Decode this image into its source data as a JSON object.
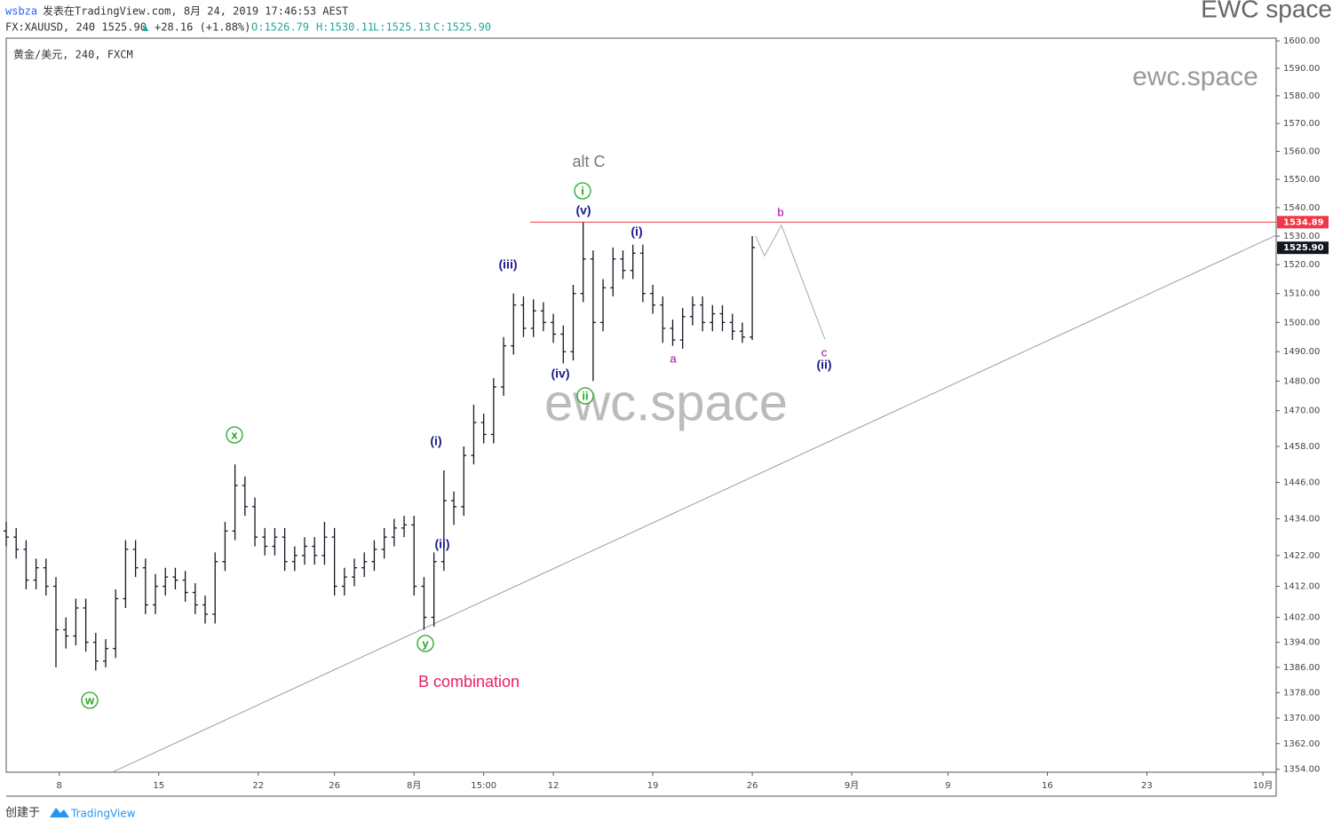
{
  "header": {
    "user": "wsbza",
    "published": "发表在TradingView.com, 8月 24, 2019 17:46:53 AEST",
    "brand": "EWC space",
    "symbol_line": "FX:XAUUSD, 240 1525.90",
    "change_arrow": "▲",
    "change": "+28.16 (+1.88%)",
    "open": "O:1526.79",
    "high": "H:1530.11",
    "low": "L:1525.13",
    "close": "C:1525.90",
    "legend": "黄金/美元, 240, FXCM"
  },
  "footer": {
    "created": "创建于",
    "logo": "TradingView"
  },
  "watermarks": [
    "ewc.space",
    "ewc.space"
  ],
  "chart_data": {
    "type": "ohlc",
    "bar_color": "#131722",
    "log_scale": true,
    "x": [
      0,
      3,
      6,
      9,
      12,
      15,
      18,
      21,
      24,
      27,
      30,
      33,
      36,
      39,
      42,
      45,
      48,
      51,
      54,
      57,
      60,
      63,
      66,
      69,
      72,
      75,
      78,
      81,
      84,
      87,
      90,
      93,
      96,
      99,
      102,
      105,
      108,
      111,
      114,
      117,
      120,
      123,
      126,
      129,
      132,
      135,
      138,
      141,
      144,
      147,
      150,
      153,
      156,
      159,
      162,
      165,
      168,
      171,
      174,
      177,
      180,
      183,
      186,
      189,
      192,
      195,
      198,
      201,
      204,
      207,
      210,
      213,
      216,
      219,
      222,
      225
    ],
    "open": [
      1430,
      1428,
      1424,
      1414,
      1418,
      1412,
      1398,
      1396,
      1405,
      1394,
      1388,
      1392,
      1408,
      1424,
      1418,
      1406,
      1412,
      1415,
      1414,
      1410,
      1406,
      1403,
      1420,
      1430,
      1445,
      1438,
      1428,
      1425,
      1428,
      1420,
      1422,
      1425,
      1422,
      1428,
      1412,
      1415,
      1418,
      1420,
      1424,
      1428,
      1431,
      1432,
      1412,
      1402,
      1420,
      1440,
      1438,
      1455,
      1466,
      1462,
      1478,
      1492,
      1506,
      1498,
      1504,
      1500,
      1496,
      1490,
      1510,
      1522,
      1500,
      1512,
      1522,
      1518,
      1524,
      1510,
      1506,
      1498,
      1494,
      1502,
      1506,
      1500,
      1503,
      1500,
      1497,
      1495
    ],
    "high": [
      1433,
      1431,
      1427,
      1421,
      1421,
      1415,
      1402,
      1408,
      1408,
      1397,
      1395,
      1411,
      1427,
      1427,
      1421,
      1416,
      1418,
      1418,
      1417,
      1413,
      1409,
      1423,
      1433,
      1452,
      1448,
      1441,
      1431,
      1431,
      1431,
      1425,
      1428,
      1428,
      1433,
      1431,
      1418,
      1421,
      1423,
      1427,
      1431,
      1434,
      1435,
      1435,
      1415,
      1423,
      1450,
      1443,
      1458,
      1472,
      1469,
      1481,
      1495,
      1510,
      1509,
      1508,
      1507,
      1503,
      1499,
      1513,
      1535,
      1525,
      1515,
      1526,
      1525,
      1527,
      1527,
      1513,
      1509,
      1501,
      1505,
      1509,
      1509,
      1506,
      1506,
      1503,
      1500,
      1530
    ],
    "low": [
      1425,
      1421,
      1411,
      1411,
      1409,
      1386,
      1392,
      1393,
      1391,
      1385,
      1386,
      1389,
      1405,
      1415,
      1403,
      1403,
      1409,
      1411,
      1407,
      1403,
      1400,
      1400,
      1417,
      1427,
      1435,
      1425,
      1422,
      1422,
      1417,
      1417,
      1419,
      1419,
      1419,
      1409,
      1409,
      1412,
      1415,
      1417,
      1421,
      1425,
      1428,
      1409,
      1398,
      1399,
      1417,
      1432,
      1435,
      1452,
      1459,
      1459,
      1475,
      1489,
      1495,
      1495,
      1497,
      1493,
      1486,
      1487,
      1507,
      1480,
      1497,
      1509,
      1515,
      1515,
      1507,
      1503,
      1493,
      1492,
      1491,
      1499,
      1497,
      1497,
      1497,
      1494,
      1493,
      1494
    ],
    "close": [
      1428,
      1424,
      1414,
      1418,
      1412,
      1398,
      1396,
      1405,
      1394,
      1388,
      1392,
      1408,
      1424,
      1418,
      1406,
      1412,
      1415,
      1414,
      1410,
      1406,
      1403,
      1420,
      1430,
      1445,
      1438,
      1428,
      1425,
      1428,
      1420,
      1422,
      1425,
      1422,
      1428,
      1412,
      1415,
      1418,
      1420,
      1424,
      1428,
      1431,
      1432,
      1412,
      1402,
      1420,
      1440,
      1438,
      1455,
      1466,
      1462,
      1478,
      1492,
      1506,
      1498,
      1504,
      1500,
      1496,
      1490,
      1510,
      1522,
      1500,
      1512,
      1522,
      1518,
      1524,
      1510,
      1506,
      1498,
      1494,
      1502,
      1506,
      1500,
      1503,
      1500,
      1497,
      1495,
      1526
    ],
    "xlim": [
      0,
      383
    ],
    "xticks": [
      {
        "value": 16,
        "label": "8"
      },
      {
        "value": 46,
        "label": "15"
      },
      {
        "value": 76,
        "label": "22"
      },
      {
        "value": 99,
        "label": "26"
      },
      {
        "value": 123,
        "label": "8月"
      },
      {
        "value": 144,
        "label": "15:00"
      },
      {
        "value": 165,
        "label": "12"
      },
      {
        "value": 195,
        "label": "19"
      },
      {
        "value": 225,
        "label": "26"
      },
      {
        "value": 255,
        "label": "9月"
      },
      {
        "value": 284,
        "label": "9"
      },
      {
        "value": 314,
        "label": "16"
      },
      {
        "value": 344,
        "label": "23"
      },
      {
        "value": 379,
        "label": "10月"
      }
    ],
    "ylim": [
      1353.1,
      1601
    ],
    "yticks": [
      {
        "value": 1600,
        "label": "1600.00"
      },
      {
        "value": 1590,
        "label": "1590.00"
      },
      {
        "value": 1580,
        "label": "1580.00"
      },
      {
        "value": 1570,
        "label": "1570.00"
      },
      {
        "value": 1560,
        "label": "1560.00"
      },
      {
        "value": 1550,
        "label": "1550.00"
      },
      {
        "value": 1540,
        "label": "1540.00"
      },
      {
        "value": 1530,
        "label": "1530.00"
      },
      {
        "value": 1520,
        "label": "1520.00"
      },
      {
        "value": 1510,
        "label": "1510.00"
      },
      {
        "value": 1500,
        "label": "1500.00"
      },
      {
        "value": 1490,
        "label": "1490.00"
      },
      {
        "value": 1480,
        "label": "1480.00"
      },
      {
        "value": 1470,
        "label": "1470.00"
      },
      {
        "value": 1458,
        "label": "1458.00"
      },
      {
        "value": 1446,
        "label": "1446.00"
      },
      {
        "value": 1434,
        "label": "1434.00"
      },
      {
        "value": 1422,
        "label": "1422.00"
      },
      {
        "value": 1412,
        "label": "1412.00"
      },
      {
        "value": 1402,
        "label": "1402.00"
      },
      {
        "value": 1394,
        "label": "1394.00"
      },
      {
        "value": 1386,
        "label": "1386.00"
      },
      {
        "value": 1378,
        "label": "1378.00"
      },
      {
        "value": 1370,
        "label": "1370.00"
      },
      {
        "value": 1362,
        "label": "1362.00"
      },
      {
        "value": 1354,
        "label": "1354.00"
      }
    ],
    "price_lines": [
      {
        "value": 1534.89,
        "label": "1534.89",
        "color": "#f23645",
        "line": true
      },
      {
        "value": 1525.9,
        "label": "1525.90",
        "color": "#131722",
        "line": false
      }
    ],
    "trendline": {
      "x": [
        32,
        383
      ],
      "y": [
        1353.1,
        1530.3
      ],
      "color": "#999999"
    },
    "projection": {
      "x": [
        226,
        228.7,
        233.8,
        246.9
      ],
      "y": [
        1530,
        1523.1,
        1533.8,
        1494.3
      ],
      "color": "#aaaaaa"
    },
    "annotations": [
      {
        "text": "alt C",
        "color": "#777777",
        "circled": false
      },
      {
        "text": "B combination",
        "color": "#e91e63",
        "circled": false
      },
      {
        "text": "i",
        "color": "#22a822",
        "circled": true
      },
      {
        "text": "ii",
        "color": "#22a822",
        "circled": true
      },
      {
        "text": "x",
        "color": "#22a822",
        "circled": true
      },
      {
        "text": "y",
        "color": "#22a822",
        "circled": true
      },
      {
        "text": "w",
        "color": "#22a822",
        "circled": true
      },
      {
        "text": "(v)",
        "color": "#1a1a8c",
        "circled": false
      },
      {
        "text": "(i)",
        "color": "#1a1a8c",
        "circled": false
      },
      {
        "text": "(iii)",
        "color": "#1a1a8c",
        "circled": false
      },
      {
        "text": "(iv)",
        "color": "#1a1a8c",
        "circled": false
      },
      {
        "text": "(i)",
        "color": "#1a1a8c",
        "circled": false
      },
      {
        "text": "(ii)",
        "color": "#1a1a8c",
        "circled": false
      },
      {
        "text": "(ii)",
        "color": "#1a1a8c",
        "circled": false
      },
      {
        "text": "b",
        "color": "#aa00aa",
        "circled": false
      },
      {
        "text": "a",
        "color": "#aa00aa",
        "circled": false
      },
      {
        "text": "c",
        "color": "#aa00aa",
        "circled": false
      }
    ]
  }
}
